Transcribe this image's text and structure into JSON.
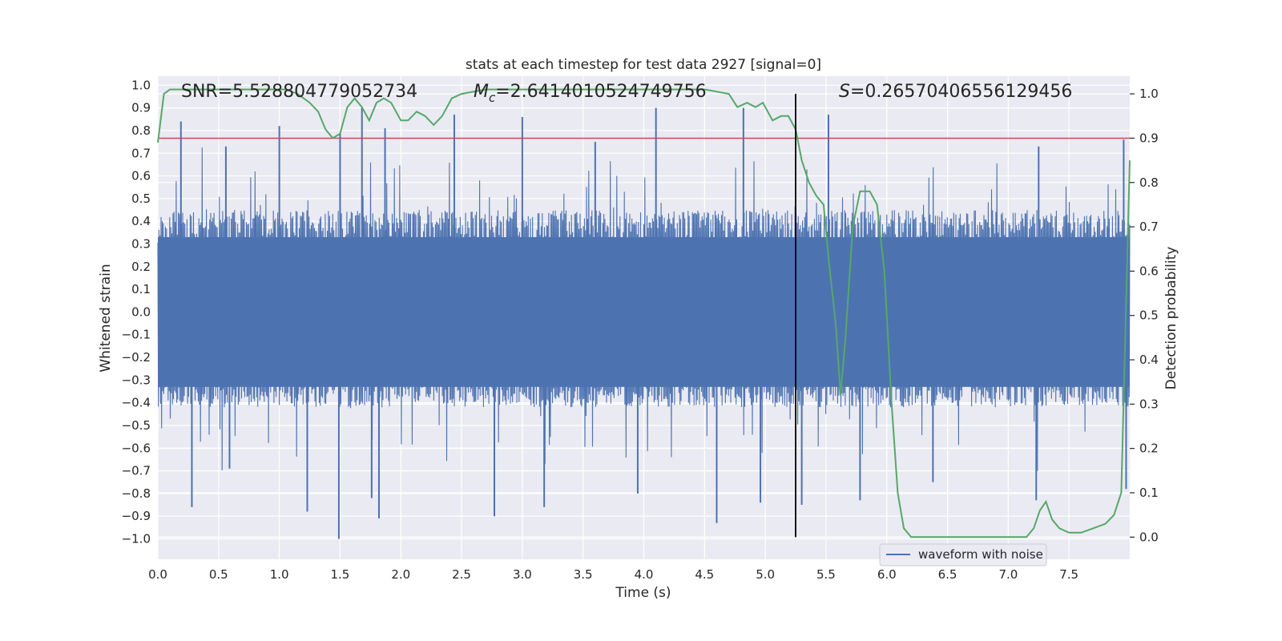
{
  "chart_data": {
    "type": "line",
    "title": "stats at each timestep for test data 2927 [signal=0]",
    "xlabel": "Time (s)",
    "ylabel": "Whitened strain",
    "ylabel_right": "Detection probability",
    "xlim": [
      0.0,
      8.0
    ],
    "ylim": [
      -1.09,
      1.04
    ],
    "ylim_right": [
      -0.05,
      1.04
    ],
    "x_ticks": [
      0.0,
      0.5,
      1.0,
      1.5,
      2.0,
      2.5,
      3.0,
      3.5,
      4.0,
      4.5,
      5.0,
      5.5,
      6.0,
      6.5,
      7.0,
      7.5
    ],
    "x_tick_labels": [
      "0.0",
      "0.5",
      "1.0",
      "1.5",
      "2.0",
      "2.5",
      "3.0",
      "3.5",
      "4.0",
      "4.5",
      "5.0",
      "5.5",
      "6.0",
      "6.5",
      "7.0",
      "7.5"
    ],
    "y_ticks": [
      1.0,
      0.9,
      0.8,
      0.7,
      0.6,
      0.5,
      0.4,
      0.3,
      0.2,
      0.1,
      0.0,
      -0.1,
      -0.2,
      -0.3,
      -0.4,
      -0.5,
      -0.6,
      -0.7,
      -0.8,
      -0.9,
      -1.0
    ],
    "y_tick_labels": [
      "1.0",
      "0.9",
      "0.8",
      "0.7",
      "0.6",
      "0.5",
      "0.4",
      "0.3",
      "0.2",
      "0.1",
      "0.0",
      "−0.1",
      "−0.2",
      "−0.3",
      "−0.4",
      "−0.5",
      "−0.6",
      "−0.7",
      "−0.8",
      "−0.9",
      "−1.0"
    ],
    "y_right_ticks": [
      1.0,
      0.9,
      0.8,
      0.7,
      0.6,
      0.5,
      0.4,
      0.3,
      0.2,
      0.1,
      0.0
    ],
    "y_right_tick_labels": [
      "1.0",
      "0.9",
      "0.8",
      "0.7",
      "0.6",
      "0.5",
      "0.4",
      "0.3",
      "0.2",
      "0.1",
      "0.0"
    ],
    "grid": true,
    "legend": {
      "position": "bottom-right",
      "entries": [
        "waveform with noise"
      ]
    },
    "annotations": {
      "snr": "SNR=5.528804779052734",
      "mc_symbol": "M",
      "mc_sub": "c",
      "mc_value": "=2.6414010524749756",
      "s_symbol": "S",
      "s_value": "=0.26570406556129456"
    },
    "threshold": {
      "axis": "right",
      "value": 0.9
    },
    "marker_time": 5.25,
    "series": [
      {
        "name": "waveform with noise",
        "axis": "left",
        "kind": "noise",
        "envelope_upper": 0.45,
        "envelope_lower": -0.42,
        "peaks": [
          [
            0.19,
            0.84
          ],
          [
            0.28,
            -0.86
          ],
          [
            0.56,
            0.73
          ],
          [
            0.59,
            -0.69
          ],
          [
            1.0,
            0.82
          ],
          [
            1.23,
            -0.88
          ],
          [
            1.49,
            -1.0
          ],
          [
            1.5,
            0.79
          ],
          [
            1.68,
            0.9
          ],
          [
            1.76,
            -0.82
          ],
          [
            1.82,
            -0.91
          ],
          [
            1.87,
            0.81
          ],
          [
            2.44,
            0.87
          ],
          [
            2.77,
            -0.9
          ],
          [
            3.0,
            0.86
          ],
          [
            3.18,
            -0.86
          ],
          [
            3.6,
            0.75
          ],
          [
            3.95,
            -0.8
          ],
          [
            4.1,
            0.9
          ],
          [
            4.6,
            -0.93
          ],
          [
            4.82,
            0.9
          ],
          [
            4.96,
            -0.84
          ],
          [
            5.3,
            -0.85
          ],
          [
            5.52,
            0.87
          ],
          [
            5.78,
            -0.83
          ],
          [
            6.38,
            -0.75
          ],
          [
            7.23,
            -0.83
          ],
          [
            7.25,
            0.73
          ],
          [
            7.95,
            0.76
          ],
          [
            7.97,
            -0.78
          ]
        ]
      },
      {
        "name": "Detection probability",
        "axis": "right",
        "x": [
          0.0,
          0.05,
          0.1,
          0.3,
          0.6,
          0.9,
          1.05,
          1.15,
          1.25,
          1.32,
          1.38,
          1.44,
          1.5,
          1.56,
          1.62,
          1.68,
          1.74,
          1.8,
          1.86,
          1.92,
          2.0,
          2.06,
          2.13,
          2.2,
          2.27,
          2.34,
          2.42,
          2.5,
          2.7,
          3.0,
          3.5,
          4.0,
          4.5,
          4.7,
          4.77,
          4.85,
          4.92,
          4.98,
          5.06,
          5.13,
          5.19,
          5.25,
          5.3,
          5.36,
          5.42,
          5.48,
          5.52,
          5.58,
          5.62,
          5.66,
          5.72,
          5.78,
          5.86,
          5.92,
          5.98,
          6.04,
          6.09,
          6.14,
          6.2,
          6.3,
          6.5,
          6.8,
          7.0,
          7.15,
          7.21,
          7.26,
          7.31,
          7.36,
          7.42,
          7.5,
          7.6,
          7.7,
          7.8,
          7.87,
          7.93,
          8.0
        ],
        "y": [
          0.89,
          1.0,
          1.01,
          1.01,
          1.01,
          1.01,
          1.01,
          1.0,
          0.98,
          0.96,
          0.92,
          0.9,
          0.91,
          0.97,
          0.99,
          0.97,
          0.94,
          0.98,
          0.99,
          0.98,
          0.94,
          0.94,
          0.96,
          0.95,
          0.93,
          0.95,
          0.99,
          1.0,
          1.01,
          1.01,
          1.01,
          1.01,
          1.01,
          1.0,
          0.97,
          0.98,
          0.97,
          0.98,
          0.94,
          0.95,
          0.95,
          0.92,
          0.85,
          0.8,
          0.77,
          0.75,
          0.63,
          0.48,
          0.32,
          0.45,
          0.7,
          0.78,
          0.78,
          0.75,
          0.6,
          0.3,
          0.1,
          0.02,
          0.0,
          0.0,
          0.0,
          0.0,
          0.0,
          0.0,
          0.02,
          0.06,
          0.08,
          0.04,
          0.02,
          0.01,
          0.01,
          0.02,
          0.03,
          0.05,
          0.1,
          0.85
        ]
      }
    ]
  }
}
